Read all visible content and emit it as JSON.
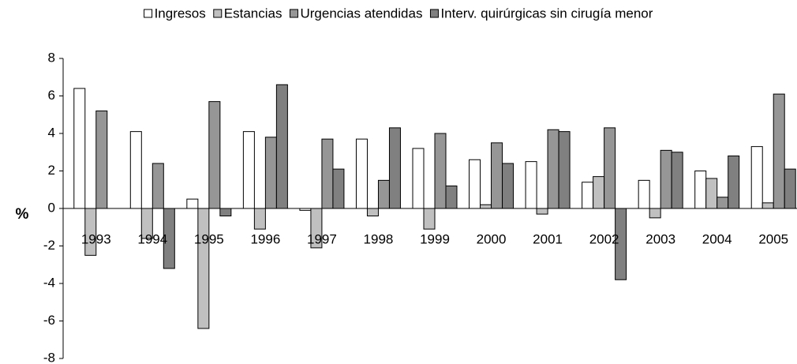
{
  "chart_data": {
    "type": "bar",
    "ylabel": "%",
    "categories": [
      "1993",
      "1994",
      "1995",
      "1996",
      "1997",
      "1998",
      "1999",
      "2000",
      "2001",
      "2002",
      "2003",
      "2004",
      "2005"
    ],
    "series": [
      {
        "name": "Ingresos",
        "color": "#ffffff",
        "values": [
          6.4,
          4.1,
          0.5,
          4.1,
          -0.1,
          3.7,
          3.2,
          2.6,
          2.5,
          1.4,
          1.5,
          2.0,
          3.3
        ]
      },
      {
        "name": "Estancias",
        "color": "#c0c0c0",
        "values": [
          -2.5,
          -1.6,
          -6.4,
          -1.1,
          -2.1,
          -0.4,
          -1.1,
          0.2,
          -0.3,
          1.7,
          -0.5,
          1.6,
          0.3
        ]
      },
      {
        "name": "Urgencias atendidas",
        "color": "#969696",
        "values": [
          5.2,
          2.4,
          5.7,
          3.8,
          3.7,
          1.5,
          4.0,
          3.5,
          4.2,
          4.3,
          3.1,
          0.6,
          6.1
        ]
      },
      {
        "name": "Interv. quirúrgicas sin cirugía menor",
        "color": "#808080",
        "values": [
          null,
          -3.2,
          -0.4,
          6.6,
          2.1,
          4.3,
          1.2,
          2.4,
          4.1,
          -3.8,
          3.0,
          2.8,
          2.1
        ]
      }
    ],
    "ylim": [
      -8,
      8
    ],
    "yticks": [
      -8,
      -6,
      -4,
      -2,
      0,
      2,
      4,
      6,
      8
    ]
  }
}
